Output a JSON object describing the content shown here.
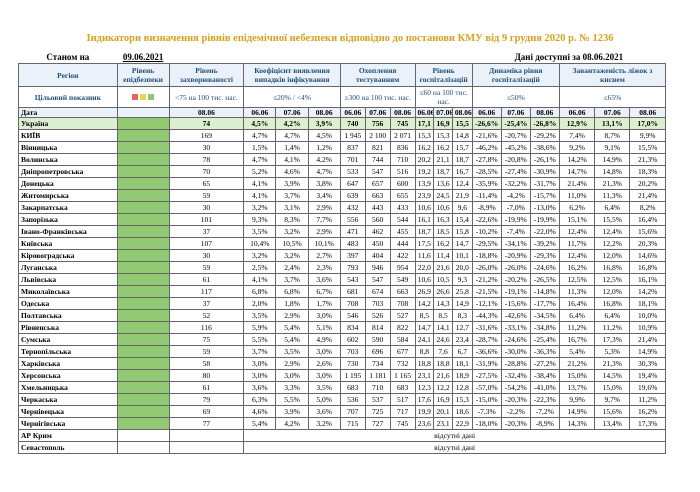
{
  "title": "Індикатори визначення рівнів епідемічної небезпеки відповідно до постанови КМУ від 9 грудня 2020 р. № 1236",
  "status": {
    "label": "Станом на",
    "date": "09.06.2021",
    "available": "Дані доступні за 08.06.2021"
  },
  "header": {
    "columns": [
      "Регіон",
      "Рівень епідбезпеки",
      "Рівень захворюваності",
      "Коефіцієнт виявлення випадків інфікування",
      "Охоплення тестуванням",
      "Рівень госпіталізацій",
      "Динаміка рівня госпіталізацій",
      "Завантаженість ліжок з киснем"
    ],
    "target_label": "Цільовий показник",
    "targets": [
      "<75 на 100 тис. нас.",
      "≤20% / <4%",
      "≥300 на 100 тис. нас.",
      "≤60 на 100 тис. нас.",
      "≤50%",
      "≤65%"
    ],
    "date_label": "Дата",
    "dates": [
      "08.06",
      "06.06",
      "07.06",
      "08.06",
      "06.06",
      "07.06",
      "08.06",
      "06.06",
      "07.06",
      "08.06",
      "06.06",
      "07.06",
      "08.06",
      "06.06",
      "07.06",
      "08.06"
    ]
  },
  "rows": [
    {
      "region": "Україна",
      "values": [
        "74",
        "4,5%",
        "4,2%",
        "3,9%",
        "740",
        "756",
        "745",
        "17,1",
        "16,9",
        "15,5",
        "-26,6%",
        "-25,4%",
        "-26,8%",
        "12,9%",
        "13,1%",
        "17,0%"
      ]
    },
    {
      "region": "КИЇВ",
      "values": [
        "169",
        "4,7%",
        "4,7%",
        "4,5%",
        "1 945",
        "2 100",
        "2 071",
        "15,3",
        "15,3",
        "14,8",
        "-21,6%",
        "-20,7%",
        "-29,2%",
        "7,4%",
        "8,7%",
        "9,9%"
      ]
    },
    {
      "region": "Вінницька",
      "values": [
        "30",
        "1,5%",
        "1,4%",
        "1,2%",
        "837",
        "821",
        "836",
        "16,2",
        "16,2",
        "15,7",
        "-46,2%",
        "-45,2%",
        "-38,6%",
        "9,2%",
        "9,1%",
        "15,5%"
      ]
    },
    {
      "region": "Волинська",
      "values": [
        "78",
        "4,7%",
        "4,1%",
        "4,2%",
        "701",
        "744",
        "710",
        "20,2",
        "21,1",
        "18,7",
        "-27,8%",
        "-20,8%",
        "-26,1%",
        "14,2%",
        "14,9%",
        "21,3%"
      ]
    },
    {
      "region": "Дніпропетровська",
      "values": [
        "70",
        "5,2%",
        "4,6%",
        "4,7%",
        "533",
        "547",
        "516",
        "19,2",
        "18,7",
        "16,7",
        "-28,5%",
        "-27,4%",
        "-30,9%",
        "14,7%",
        "14,8%",
        "18,3%"
      ]
    },
    {
      "region": "Донецька",
      "values": [
        "65",
        "4,1%",
        "3,9%",
        "3,8%",
        "647",
        "657",
        "600",
        "13,9",
        "13,6",
        "12,4",
        "-35,9%",
        "-32,2%",
        "-31,7%",
        "21,4%",
        "21,3%",
        "20,2%"
      ]
    },
    {
      "region": "Житомирська",
      "values": [
        "59",
        "4,1%",
        "3,7%",
        "3,4%",
        "639",
        "663",
        "655",
        "23,9",
        "24,5",
        "21,9",
        "-11,4%",
        "-4,2%",
        "-15,7%",
        "11,0%",
        "11,3%",
        "21,4%"
      ]
    },
    {
      "region": "Закарпатська",
      "values": [
        "30",
        "3,2%",
        "3,1%",
        "2,9%",
        "432",
        "443",
        "433",
        "10,6",
        "10,6",
        "9,6",
        "-8,9%",
        "-7,0%",
        "-13,0%",
        "6,2%",
        "6,4%",
        "8,2%"
      ]
    },
    {
      "region": "Запорізька",
      "values": [
        "101",
        "9,3%",
        "8,3%",
        "7,7%",
        "556",
        "560",
        "544",
        "16,1",
        "16,3",
        "15,4",
        "-22,6%",
        "-19,9%",
        "-19,9%",
        "15,1%",
        "15,5%",
        "16,4%"
      ]
    },
    {
      "region": "Івано-Франківська",
      "values": [
        "37",
        "3,5%",
        "3,2%",
        "2,9%",
        "471",
        "462",
        "455",
        "18,7",
        "18,5",
        "15,8",
        "-10,2%",
        "-7,4%",
        "-22,0%",
        "12,4%",
        "12,4%",
        "15,6%"
      ]
    },
    {
      "region": "Київська",
      "values": [
        "107",
        "10,4%",
        "10,5%",
        "10,1%",
        "483",
        "450",
        "444",
        "17,5",
        "16,2",
        "14,7",
        "-29,5%",
        "-34,1%",
        "-39,2%",
        "11,7%",
        "12,2%",
        "20,3%"
      ]
    },
    {
      "region": "Кіровоградська",
      "values": [
        "30",
        "3,2%",
        "3,2%",
        "2,7%",
        "397",
        "404",
        "422",
        "11,6",
        "11,4",
        "10,1",
        "-18,8%",
        "-20,9%",
        "-29,3%",
        "12,4%",
        "12,0%",
        "14,6%"
      ]
    },
    {
      "region": "Луганська",
      "values": [
        "59",
        "2,5%",
        "2,4%",
        "2,3%",
        "793",
        "946",
        "954",
        "22,0",
        "21,6",
        "20,0",
        "-26,0%",
        "-26,0%",
        "-24,6%",
        "16,2%",
        "16,8%",
        "16,8%"
      ]
    },
    {
      "region": "Львівська",
      "values": [
        "61",
        "4,1%",
        "3,7%",
        "3,6%",
        "543",
        "547",
        "549",
        "10,6",
        "10,5",
        "9,3",
        "-21,2%",
        "-20,2%",
        "-26,5%",
        "12,5%",
        "12,5%",
        "16,1%"
      ]
    },
    {
      "region": "Миколаївська",
      "values": [
        "117",
        "6,8%",
        "6,8%",
        "6,7%",
        "681",
        "674",
        "663",
        "26,9",
        "26,6",
        "25,8",
        "-21,5%",
        "-19,1%",
        "-14,8%",
        "11,3%",
        "12,0%",
        "14,2%"
      ]
    },
    {
      "region": "Одеська",
      "values": [
        "37",
        "2,0%",
        "1,8%",
        "1,7%",
        "708",
        "703",
        "708",
        "14,2",
        "14,3",
        "14,9",
        "-12,1%",
        "-15,6%",
        "-17,7%",
        "16,4%",
        "16,8%",
        "18,1%"
      ]
    },
    {
      "region": "Полтавська",
      "values": [
        "52",
        "3,5%",
        "2,9%",
        "3,0%",
        "546",
        "526",
        "527",
        "8,5",
        "8,5",
        "8,3",
        "-44,3%",
        "-42,6%",
        "-34,5%",
        "6,4%",
        "6,4%",
        "10,0%"
      ]
    },
    {
      "region": "Рівненська",
      "values": [
        "116",
        "5,9%",
        "5,4%",
        "5,1%",
        "834",
        "814",
        "822",
        "14,7",
        "14,1",
        "12,7",
        "-31,6%",
        "-33,1%",
        "-34,8%",
        "11,2%",
        "11,2%",
        "10,9%"
      ]
    },
    {
      "region": "Сумська",
      "values": [
        "75",
        "5,5%",
        "5,4%",
        "4,9%",
        "602",
        "590",
        "584",
        "24,1",
        "24,6",
        "23,4",
        "-28,7%",
        "-24,6%",
        "-25,4%",
        "16,7%",
        "17,3%",
        "21,4%"
      ]
    },
    {
      "region": "Тернопільська",
      "values": [
        "59",
        "3,7%",
        "3,5%",
        "3,0%",
        "703",
        "696",
        "677",
        "8,8",
        "7,6",
        "6,7",
        "-36,6%",
        "-30,0%",
        "-36,3%",
        "5,4%",
        "5,3%",
        "14,9%"
      ]
    },
    {
      "region": "Харківська",
      "values": [
        "58",
        "3,0%",
        "2,9%",
        "2,6%",
        "730",
        "734",
        "732",
        "18,8",
        "18,8",
        "18,1",
        "-31,9%",
        "-28,8%",
        "-27,2%",
        "21,2%",
        "21,3%",
        "30,3%"
      ]
    },
    {
      "region": "Херсонська",
      "values": [
        "80",
        "3,0%",
        "3,0%",
        "3,0%",
        "1 195",
        "1 181",
        "1 165",
        "23,1",
        "21,6",
        "18,9",
        "-27,5%",
        "-32,4%",
        "-38,4%",
        "15,0%",
        "14,5%",
        "19,4%"
      ]
    },
    {
      "region": "Хмельницька",
      "values": [
        "61",
        "3,6%",
        "3,3%",
        "3,5%",
        "683",
        "710",
        "683",
        "12,3",
        "12,2",
        "12,8",
        "-57,0%",
        "-54,2%",
        "-41,0%",
        "13,7%",
        "15,0%",
        "19,6%"
      ]
    },
    {
      "region": "Черкаська",
      "values": [
        "79",
        "6,3%",
        "5,5%",
        "5,0%",
        "536",
        "537",
        "517",
        "17,6",
        "16,9",
        "15,3",
        "-15,0%",
        "-20,3%",
        "-22,3%",
        "9,9%",
        "9,7%",
        "11,2%"
      ]
    },
    {
      "region": "Чернівецька",
      "values": [
        "69",
        "4,6%",
        "3,9%",
        "3,6%",
        "707",
        "725",
        "717",
        "19,9",
        "20,1",
        "18,6",
        "-7,3%",
        "-2,2%",
        "-7,2%",
        "14,9%",
        "15,6%",
        "16,2%"
      ]
    },
    {
      "region": "Чернігівська",
      "values": [
        "77",
        "5,4%",
        "4,2%",
        "3,2%",
        "715",
        "727",
        "745",
        "23,6",
        "23,1",
        "22,9",
        "-18,0%",
        "-20,3%",
        "-8,9%",
        "14,3%",
        "13,4%",
        "17,3%"
      ]
    }
  ],
  "missing": [
    {
      "region": "АР Крим",
      "note": "відсутні дані"
    },
    {
      "region": "Севастополь",
      "note": "відсутні дані"
    }
  ]
}
